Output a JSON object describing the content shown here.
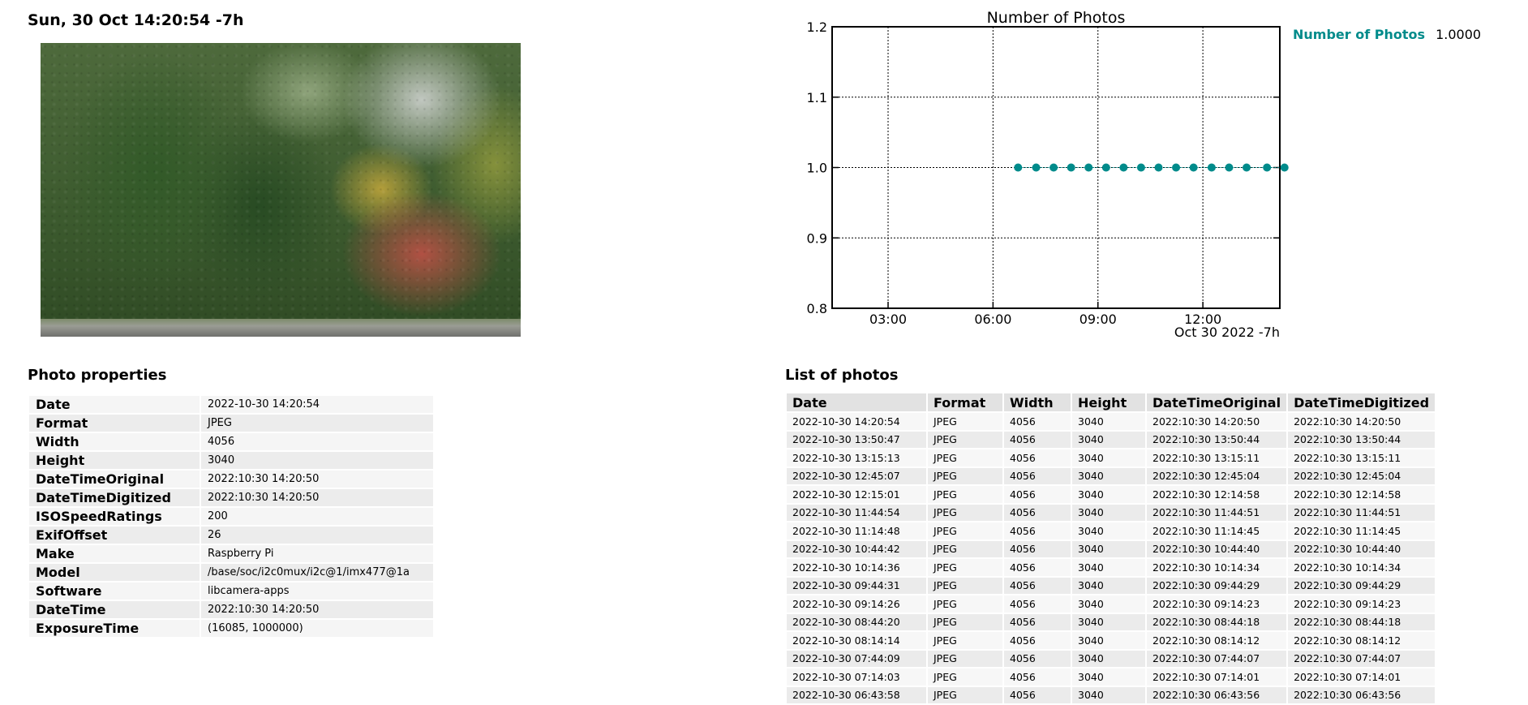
{
  "header": {
    "title": "Sun, 30 Oct 14:20:54 -7h"
  },
  "photo": {
    "subject": "autumn trees and shrubs beside a curb"
  },
  "properties": {
    "title": "Photo properties",
    "rows": [
      {
        "key": "Date",
        "value": "2022-10-30 14:20:54"
      },
      {
        "key": "Format",
        "value": "JPEG"
      },
      {
        "key": "Width",
        "value": "4056"
      },
      {
        "key": "Height",
        "value": "3040"
      },
      {
        "key": "DateTimeOriginal",
        "value": "2022:10:30 14:20:50"
      },
      {
        "key": "DateTimeDigitized",
        "value": "2022:10:30 14:20:50"
      },
      {
        "key": "ISOSpeedRatings",
        "value": "200"
      },
      {
        "key": "ExifOffset",
        "value": "26"
      },
      {
        "key": "Make",
        "value": "Raspberry Pi"
      },
      {
        "key": "Model",
        "value": "/base/soc/i2c0mux/i2c@1/imx477@1a"
      },
      {
        "key": "Software",
        "value": "libcamera-apps"
      },
      {
        "key": "DateTime",
        "value": "2022:10:30 14:20:50"
      },
      {
        "key": "ExposureTime",
        "value": "(16085, 1000000)"
      }
    ]
  },
  "photo_list": {
    "title": "List of photos",
    "columns": [
      "Date",
      "Format",
      "Width",
      "Height",
      "DateTimeOriginal",
      "DateTimeDigitized"
    ],
    "rows": [
      [
        "2022-10-30 14:20:54",
        "JPEG",
        "4056",
        "3040",
        "2022:10:30 14:20:50",
        "2022:10:30 14:20:50"
      ],
      [
        "2022-10-30 13:50:47",
        "JPEG",
        "4056",
        "3040",
        "2022:10:30 13:50:44",
        "2022:10:30 13:50:44"
      ],
      [
        "2022-10-30 13:15:13",
        "JPEG",
        "4056",
        "3040",
        "2022:10:30 13:15:11",
        "2022:10:30 13:15:11"
      ],
      [
        "2022-10-30 12:45:07",
        "JPEG",
        "4056",
        "3040",
        "2022:10:30 12:45:04",
        "2022:10:30 12:45:04"
      ],
      [
        "2022-10-30 12:15:01",
        "JPEG",
        "4056",
        "3040",
        "2022:10:30 12:14:58",
        "2022:10:30 12:14:58"
      ],
      [
        "2022-10-30 11:44:54",
        "JPEG",
        "4056",
        "3040",
        "2022:10:30 11:44:51",
        "2022:10:30 11:44:51"
      ],
      [
        "2022-10-30 11:14:48",
        "JPEG",
        "4056",
        "3040",
        "2022:10:30 11:14:45",
        "2022:10:30 11:14:45"
      ],
      [
        "2022-10-30 10:44:42",
        "JPEG",
        "4056",
        "3040",
        "2022:10:30 10:44:40",
        "2022:10:30 10:44:40"
      ],
      [
        "2022-10-30 10:14:36",
        "JPEG",
        "4056",
        "3040",
        "2022:10:30 10:14:34",
        "2022:10:30 10:14:34"
      ],
      [
        "2022-10-30 09:44:31",
        "JPEG",
        "4056",
        "3040",
        "2022:10:30 09:44:29",
        "2022:10:30 09:44:29"
      ],
      [
        "2022-10-30 09:14:26",
        "JPEG",
        "4056",
        "3040",
        "2022:10:30 09:14:23",
        "2022:10:30 09:14:23"
      ],
      [
        "2022-10-30 08:44:20",
        "JPEG",
        "4056",
        "3040",
        "2022:10:30 08:44:18",
        "2022:10:30 08:44:18"
      ],
      [
        "2022-10-30 08:14:14",
        "JPEG",
        "4056",
        "3040",
        "2022:10:30 08:14:12",
        "2022:10:30 08:14:12"
      ],
      [
        "2022-10-30 07:44:09",
        "JPEG",
        "4056",
        "3040",
        "2022:10:30 07:44:07",
        "2022:10:30 07:44:07"
      ],
      [
        "2022-10-30 07:14:03",
        "JPEG",
        "4056",
        "3040",
        "2022:10:30 07:14:01",
        "2022:10:30 07:14:01"
      ],
      [
        "2022-10-30 06:43:58",
        "JPEG",
        "4056",
        "3040",
        "2022:10:30 06:43:56",
        "2022:10:30 06:43:56"
      ]
    ]
  },
  "chart_data": {
    "type": "scatter",
    "title": "Number of Photos",
    "xlabel": "Oct 30 2022 -7h",
    "ylabel": "",
    "x_unit": "hour of day",
    "xlim": [
      1.4,
      14.2
    ],
    "ylim": [
      0.8,
      1.2
    ],
    "xticks": [
      3,
      6,
      9,
      12
    ],
    "xtick_labels": [
      "03:00",
      "06:00",
      "09:00",
      "12:00"
    ],
    "yticks": [
      0.8,
      0.9,
      1.0,
      1.1,
      1.2
    ],
    "ytick_labels": [
      "0.8",
      "0.9",
      "1.0",
      "1.1",
      "1.2"
    ],
    "grid": true,
    "legend_position": "right, outside",
    "series": [
      {
        "name": "Number of Photos",
        "color": "#008b8b",
        "legend_value": "1.0000",
        "x": [
          "06:43",
          "07:14",
          "07:44",
          "08:14",
          "08:44",
          "09:14",
          "09:44",
          "10:14",
          "10:44",
          "11:14",
          "11:44",
          "12:15",
          "12:45",
          "13:15",
          "13:50",
          "14:20"
        ],
        "y": [
          1,
          1,
          1,
          1,
          1,
          1,
          1,
          1,
          1,
          1,
          1,
          1,
          1,
          1,
          1,
          1
        ]
      }
    ]
  }
}
